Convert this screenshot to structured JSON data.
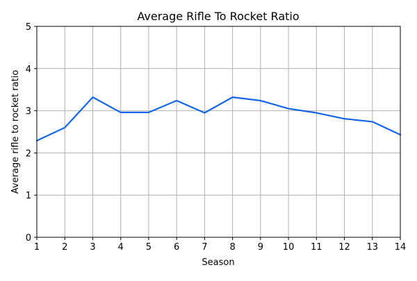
{
  "chart_data": {
    "type": "line",
    "title": "Average Rifle To Rocket Ratio",
    "xlabel": "Season",
    "ylabel": "Average rifle to rocket ratio",
    "x": [
      1,
      2,
      3,
      4,
      5,
      6,
      7,
      8,
      9,
      10,
      11,
      12,
      13,
      14
    ],
    "series": [
      {
        "values": [
          2.29,
          2.6,
          3.32,
          2.96,
          2.96,
          3.24,
          2.95,
          3.32,
          3.24,
          3.05,
          2.95,
          2.81,
          2.74,
          2.43
        ]
      }
    ],
    "xlim": [
      1,
      14
    ],
    "ylim": [
      0,
      5
    ],
    "xticks": [
      "1",
      "2",
      "3",
      "4",
      "5",
      "6",
      "7",
      "8",
      "9",
      "10",
      "11",
      "12",
      "13",
      "14"
    ],
    "yticks": [
      "0",
      "1",
      "2",
      "3",
      "4",
      "5"
    ],
    "grid": true,
    "line_color": "#1565e8"
  }
}
